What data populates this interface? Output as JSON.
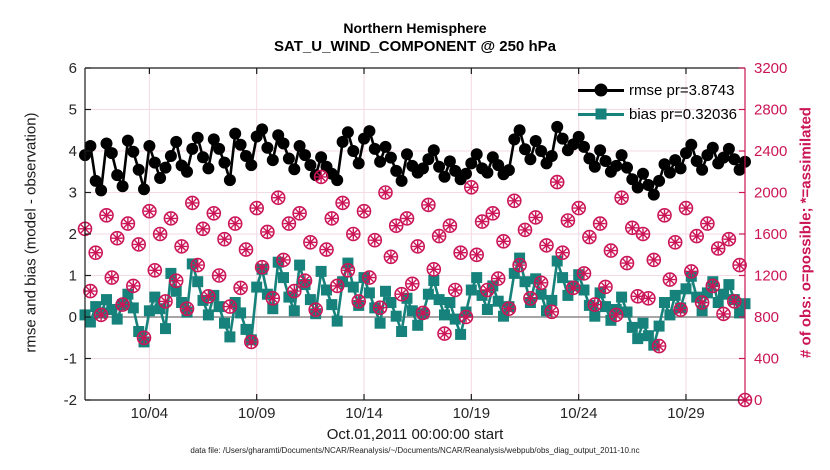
{
  "figure": {
    "title_line1": "Northern Hemisphere",
    "title_line2": "SAT_U_WIND_COMPONENT @ 250 hPa",
    "xlabel": "Oct.01,2011 00:00:00 start",
    "ylabel_left": "rmse and bias (model - observation)",
    "ylabel_right": "# of obs: o=possible; *=assimilated",
    "footer": "data file: /Users/gharamti/Documents/NCAR/Reanalysis/~/Documents/NCAR/Reanalysis/webpub/obs_diag_output_2011-10.nc",
    "legend": [
      {
        "label": "rmse pr=3.8743",
        "color_key": "rmse",
        "marker": "circle"
      },
      {
        "label": "bias pr=0.32036",
        "color_key": "bias",
        "marker": "square"
      }
    ]
  },
  "chart_data": {
    "type": "line",
    "title": "Northern Hemisphere — SAT_U_WIND_COMPONENT @ 250 hPa",
    "x_axis": {
      "start_label": "Oct.01,2011 00:00:00 start",
      "tick_labels": [
        "10/04",
        "10/09",
        "10/14",
        "10/19",
        "10/24",
        "10/29"
      ],
      "tick_days": [
        3,
        8,
        13,
        18,
        23,
        28
      ],
      "days_span": [
        0,
        30.75
      ],
      "time_step_days": 0.25
    },
    "y_left": {
      "label": "rmse and bias (model - observation)",
      "min": -2,
      "max": 6,
      "ticks": [
        -2,
        -1,
        0,
        1,
        2,
        3,
        4,
        5,
        6
      ]
    },
    "y_right": {
      "label": "# of obs: o=possible; *=assimilated",
      "min": 0,
      "max": 3200,
      "ticks": [
        0,
        400,
        800,
        1200,
        1600,
        2000,
        2400,
        2800,
        3200
      ]
    },
    "grid": true,
    "legend_position": "top-right-inside",
    "colors": {
      "rmse": "#000000",
      "bias": "#17827C",
      "obs": "#CB1556",
      "grid": "#F3DAE4",
      "zero_line": "#999999",
      "axis": "#1a1a1a",
      "tick_text": "#262626"
    },
    "series": [
      {
        "name": "rmse pr=3.8743",
        "axis": "left",
        "marker": "circle",
        "color_key": "rmse",
        "values": [
          3.9,
          4.12,
          3.28,
          3.05,
          4.18,
          3.95,
          3.42,
          3.15,
          4.25,
          3.98,
          3.55,
          3.08,
          4.12,
          3.72,
          3.35,
          3.6,
          3.88,
          4.22,
          3.65,
          3.5,
          4.05,
          4.32,
          3.85,
          3.58,
          4.28,
          4.05,
          3.72,
          3.3,
          4.42,
          4.15,
          3.88,
          3.66,
          4.35,
          4.52,
          4.08,
          3.78,
          4.38,
          4.18,
          3.82,
          3.56,
          4.12,
          3.9,
          3.66,
          3.42,
          3.85,
          3.62,
          3.45,
          3.3,
          4.22,
          4.45,
          4.0,
          3.7,
          4.3,
          4.48,
          4.05,
          3.74,
          4.1,
          3.84,
          3.52,
          3.28,
          3.92,
          3.64,
          3.48,
          3.58,
          3.8,
          4.02,
          3.62,
          3.38,
          3.75,
          3.52,
          3.32,
          3.45,
          3.7,
          3.92,
          3.58,
          3.48,
          3.85,
          3.66,
          3.44,
          3.54,
          4.28,
          4.5,
          4.04,
          3.8,
          4.24,
          4.0,
          3.7,
          3.88,
          4.58,
          4.3,
          4.02,
          4.16,
          4.34,
          4.1,
          3.82,
          3.62,
          4.02,
          3.76,
          3.5,
          3.64,
          3.9,
          3.6,
          3.32,
          3.12,
          3.45,
          3.18,
          2.95,
          3.28,
          3.68,
          3.48,
          3.78,
          3.58,
          3.95,
          4.15,
          3.76,
          3.55,
          3.9,
          4.08,
          3.7,
          3.84,
          4.05,
          3.8,
          3.55,
          3.74
        ]
      },
      {
        "name": "bias pr=0.32036",
        "axis": "left",
        "marker": "square",
        "color_key": "bias",
        "values": [
          0.05,
          -0.12,
          0.25,
          0.1,
          0.42,
          0.18,
          -0.05,
          0.3,
          0.55,
          0.22,
          -0.35,
          -0.6,
          0.15,
          0.48,
          0.2,
          -0.28,
          1.05,
          0.62,
          0.35,
          0.12,
          1.28,
          0.85,
          0.4,
          0.05,
          0.52,
          0.25,
          -0.15,
          -0.48,
          0.35,
          0.1,
          -0.3,
          -0.55,
          0.72,
          1.15,
          0.55,
          0.2,
          1.32,
          0.95,
          0.48,
          0.15,
          1.25,
          0.78,
          0.42,
          0.08,
          1.1,
          0.65,
          0.3,
          -0.1,
          0.85,
          1.3,
          0.72,
          0.28,
          0.95,
          0.58,
          0.22,
          -0.15,
          0.62,
          0.35,
          0.02,
          -0.35,
          0.45,
          0.15,
          -0.2,
          0.08,
          0.55,
          0.88,
          0.42,
          0.05,
          0.35,
          -0.05,
          -0.42,
          0.12,
          0.65,
          0.95,
          0.52,
          0.18,
          0.75,
          0.38,
          0.02,
          0.25,
          1.05,
          1.42,
          0.85,
          0.35,
          0.92,
          0.55,
          0.15,
          0.4,
          1.35,
          0.95,
          0.52,
          0.75,
          1.02,
          0.65,
          0.28,
          0.02,
          0.58,
          0.25,
          -0.08,
          0.18,
          0.48,
          0.12,
          -0.25,
          -0.52,
          -0.15,
          -0.45,
          -0.68,
          -0.22,
          0.35,
          0.05,
          0.52,
          0.22,
          0.68,
          0.98,
          0.48,
          0.15,
          0.58,
          0.85,
          0.35,
          0.55,
          0.78,
          0.42,
          0.1,
          0.32
        ]
      },
      {
        "name": "# of obs possible",
        "axis": "right",
        "marker": "open-circle",
        "color_key": "obs",
        "values": [
          1650,
          1050,
          1420,
          820,
          1780,
          1180,
          1560,
          920,
          1700,
          1100,
          1500,
          600,
          1820,
          1250,
          1600,
          950,
          1750,
          1150,
          1480,
          880,
          1900,
          1300,
          1650,
          1000,
          1800,
          1200,
          1550,
          900,
          1700,
          1080,
          1450,
          560,
          1850,
          1280,
          1620,
          980,
          1950,
          1350,
          1700,
          1050,
          1800,
          1150,
          1520,
          870,
          2150,
          1450,
          1750,
          1100,
          1900,
          1250,
          1600,
          950,
          1820,
          1180,
          1540,
          890,
          2000,
          1380,
          1680,
          1020,
          1750,
          1120,
          1480,
          840,
          1880,
          1260,
          1580,
          640,
          1680,
          1060,
          1420,
          800,
          2050,
          1400,
          1720,
          1060,
          1800,
          1170,
          1530,
          880,
          1920,
          1300,
          1640,
          980,
          1760,
          1130,
          1490,
          850,
          2100,
          1420,
          1730,
          1080,
          1850,
          1220,
          1570,
          920,
          1700,
          1090,
          1440,
          820,
          1950,
          1320,
          1660,
          1000,
          1600,
          980,
          1350,
          520,
          1780,
          1160,
          1520,
          870,
          1850,
          1240,
          1580,
          940,
          1700,
          1100,
          1460,
          830,
          1550,
          950,
          1300,
          0
        ]
      },
      {
        "name": "# of obs assimilated",
        "axis": "right",
        "marker": "asterisk",
        "color_key": "obs",
        "values": [
          1650,
          1050,
          1420,
          820,
          1780,
          1180,
          1560,
          920,
          1700,
          1100,
          1500,
          600,
          1820,
          1250,
          1600,
          950,
          1750,
          1150,
          1480,
          880,
          1900,
          1300,
          1650,
          1000,
          1800,
          1200,
          1550,
          900,
          1700,
          1080,
          1450,
          560,
          1850,
          1280,
          1620,
          980,
          1950,
          1350,
          1700,
          1050,
          1800,
          1150,
          1520,
          870,
          2150,
          1450,
          1750,
          1100,
          1900,
          1250,
          1600,
          950,
          1820,
          1180,
          1540,
          890,
          2000,
          1380,
          1680,
          1020,
          1750,
          1120,
          1480,
          840,
          1880,
          1260,
          1580,
          640,
          1680,
          1060,
          1420,
          800,
          2050,
          1400,
          1720,
          1060,
          1800,
          1170,
          1530,
          880,
          1920,
          1300,
          1640,
          980,
          1760,
          1130,
          1490,
          850,
          2100,
          1420,
          1730,
          1080,
          1850,
          1220,
          1570,
          920,
          1700,
          1090,
          1440,
          820,
          1950,
          1320,
          1660,
          1000,
          1600,
          980,
          1350,
          520,
          1780,
          1160,
          1520,
          870,
          1850,
          1240,
          1580,
          940,
          1700,
          1100,
          1460,
          830,
          1550,
          950,
          1300,
          0
        ]
      }
    ]
  }
}
